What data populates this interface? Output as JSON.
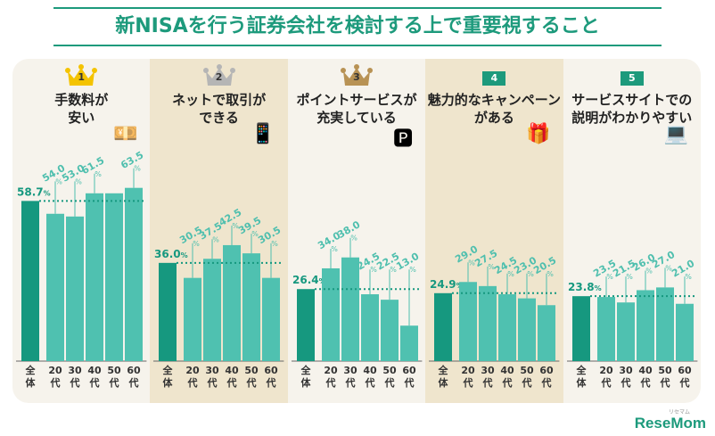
{
  "chart_data": {
    "type": "bar",
    "title": "新NISAを行う証券会社を検討する上で重要視すること",
    "categories": [
      "全体",
      "20代",
      "30代",
      "40代",
      "50代",
      "60代"
    ],
    "unit": "%",
    "colors": {
      "overall": "#16987f",
      "age": "#4fc1b0",
      "label": "#4fbfae"
    },
    "panels": [
      {
        "rank": "1",
        "label": "手数料が\n安い",
        "badge": "gold-crown",
        "icon": "money-icon",
        "values": [
          58.7,
          54.0,
          53.0,
          61.5,
          61.5,
          63.5
        ],
        "value_labels": [
          "58.7",
          "54.0",
          "53.0",
          "61.5",
          "",
          "63.5"
        ]
      },
      {
        "rank": "2",
        "label": "ネットで取引が\nできる",
        "badge": "silver-crown",
        "icon": "smartphone-icon",
        "values": [
          36.0,
          30.5,
          37.5,
          42.5,
          39.5,
          30.5
        ],
        "value_labels": [
          "36.0",
          "30.5",
          "37.5",
          "42.5",
          "39.5",
          "30.5"
        ]
      },
      {
        "rank": "3",
        "label": "ポイントサービスが\n充実している",
        "badge": "bronze-crown",
        "icon": "point-coin-icon",
        "values": [
          26.4,
          34.0,
          38.0,
          24.5,
          22.5,
          13.0
        ],
        "value_labels": [
          "26.4",
          "34.0",
          "38.0",
          "24.5",
          "22.5",
          "13.0"
        ]
      },
      {
        "rank": "4",
        "label": "魅力的なキャンペーン\nがある",
        "badge": "box",
        "icon": "gift-icon",
        "values": [
          24.9,
          29.0,
          27.5,
          24.5,
          23.0,
          20.5
        ],
        "value_labels": [
          "24.9",
          "29.0",
          "27.5",
          "24.5",
          "23.0",
          "20.5"
        ]
      },
      {
        "rank": "5",
        "label": "サービスサイトでの\n説明がわかりやすい",
        "badge": "box",
        "icon": "laptop-info-icon",
        "values": [
          23.8,
          23.5,
          21.5,
          26.0,
          27.0,
          21.0
        ],
        "value_labels": [
          "23.8",
          "23.5",
          "21.5",
          "26.0",
          "27.0",
          "21.0"
        ]
      }
    ]
  },
  "category_labels": [
    "全\n体",
    "20\n代",
    "30\n代",
    "40\n代",
    "50\n代",
    "60\n代"
  ],
  "logo": {
    "text": "ReseMom",
    "ruby": "リセマム"
  }
}
